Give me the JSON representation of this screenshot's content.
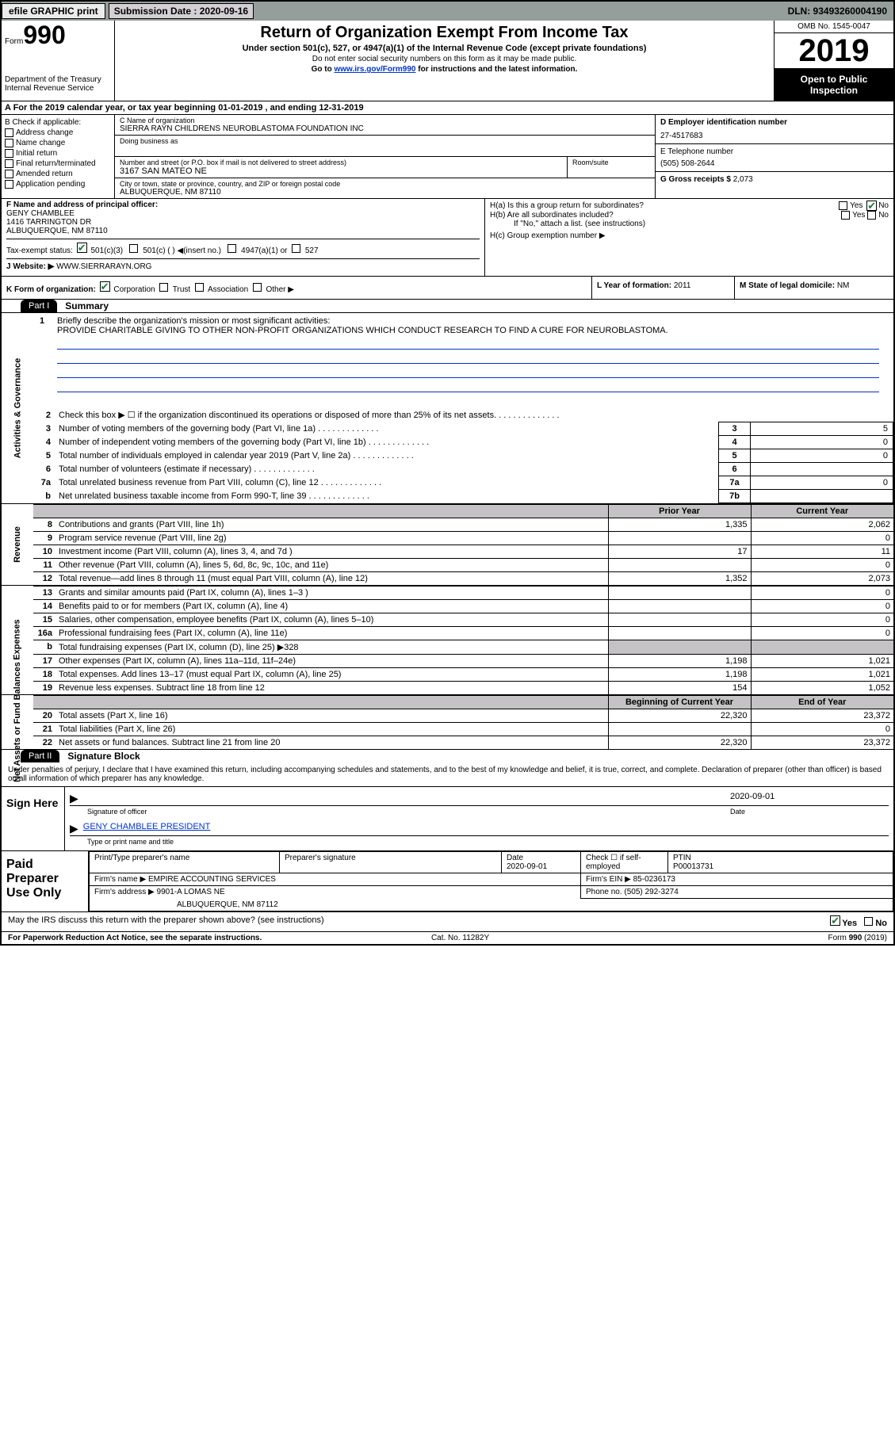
{
  "toolbar": {
    "efile": "efile GRAPHIC print",
    "sub_label": "Submission Date : ",
    "sub_date": "2020-09-16",
    "dln": "DLN: 93493260004190"
  },
  "header": {
    "form": "Form",
    "form_num": "990",
    "dept": "Department of the Treasury\nInternal Revenue Service",
    "title": "Return of Organization Exempt From Income Tax",
    "subtitle": "Under section 501(c), 527, or 4947(a)(1) of the Internal Revenue Code (except private foundations)",
    "note1": "Do not enter social security numbers on this form as it may be made public.",
    "note2_pre": "Go to ",
    "note2_link": "www.irs.gov/Form990",
    "note2_post": " for instructions and the latest information.",
    "omb": "OMB No. 1545-0047",
    "year": "2019",
    "inspect": "Open to Public Inspection"
  },
  "lineA": "A For the 2019 calendar year, or tax year beginning 01-01-2019   , and ending 12-31-2019",
  "boxB": {
    "label": "B Check if applicable:",
    "items": [
      "Address change",
      "Name change",
      "Initial return",
      "Final return/terminated",
      "Amended return",
      "Application pending"
    ]
  },
  "boxC": {
    "name_hdr": "C Name of organization",
    "name": "SIERRA RAYN CHILDRENS NEUROBLASTOMA FOUNDATION INC",
    "dba_hdr": "Doing business as",
    "addr_hdr": "Number and street (or P.O. box if mail is not delivered to street address)",
    "room_hdr": "Room/suite",
    "addr": "3167 SAN MATEO NE",
    "city_hdr": "City or town, state or province, country, and ZIP or foreign postal code",
    "city": "ALBUQUERQUE, NM  87110"
  },
  "boxD": {
    "hdr": "D Employer identification number",
    "val": "27-4517683"
  },
  "boxE": {
    "hdr": "E Telephone number",
    "val": "(505) 508-2644"
  },
  "boxG": {
    "hdr": "G Gross receipts $ ",
    "val": "2,073"
  },
  "boxF": {
    "hdr": "F Name and address of principal officer:",
    "name": "GENY CHAMBLEE",
    "addr1": "1416 TARRINGTON DR",
    "addr2": "ALBUQUERQUE, NM  87110"
  },
  "boxH": {
    "a": "H(a)  Is this a group return for subordinates?",
    "b": "H(b)  Are all subordinates included?",
    "b_note": "If \"No,\" attach a list. (see instructions)",
    "c": "H(c)  Group exemption number ▶",
    "yes": "Yes",
    "no": "No"
  },
  "boxI": {
    "label": "Tax-exempt status:",
    "opts": [
      "501(c)(3)",
      "501(c) (  ) ◀(insert no.)",
      "4947(a)(1) or",
      "527"
    ]
  },
  "boxJ": {
    "label": "J Website: ▶",
    "val": "WWW.SIERRARAYN.ORG"
  },
  "boxK": {
    "label": "K Form of organization:",
    "opts": [
      "Corporation",
      "Trust",
      "Association",
      "Other ▶"
    ]
  },
  "boxL": {
    "label": "L Year of formation: ",
    "val": "2011"
  },
  "boxM": {
    "label": "M State of legal domicile: ",
    "val": "NM"
  },
  "part1": {
    "tag": "Part I",
    "title": "Summary"
  },
  "mission": {
    "num": "1",
    "label": "Briefly describe the organization's mission or most significant activities:",
    "text": "PROVIDE CHARITABLE GIVING TO OTHER NON-PROFIT ORGANIZATIONS WHICH CONDUCT RESEARCH TO FIND A CURE FOR NEUROBLASTOMA."
  },
  "act_lines": [
    {
      "n": "2",
      "d": "Check this box ▶ ☐  if the organization discontinued its operations or disposed of more than 25% of its net assets.",
      "box": "",
      "v": ""
    },
    {
      "n": "3",
      "d": "Number of voting members of the governing body (Part VI, line 1a)",
      "box": "3",
      "v": "5"
    },
    {
      "n": "4",
      "d": "Number of independent voting members of the governing body (Part VI, line 1b)",
      "box": "4",
      "v": "0"
    },
    {
      "n": "5",
      "d": "Total number of individuals employed in calendar year 2019 (Part V, line 2a)",
      "box": "5",
      "v": "0"
    },
    {
      "n": "6",
      "d": "Total number of volunteers (estimate if necessary)",
      "box": "6",
      "v": ""
    },
    {
      "n": "7a",
      "d": "Total unrelated business revenue from Part VIII, column (C), line 12",
      "box": "7a",
      "v": "0"
    },
    {
      "n": "b",
      "d": "Net unrelated business taxable income from Form 990-T, line 39",
      "box": "7b",
      "v": ""
    }
  ],
  "rev_hdr": {
    "prior": "Prior Year",
    "curr": "Current Year"
  },
  "sec_labels": {
    "act": "Activities & Governance",
    "rev": "Revenue",
    "exp": "Expenses",
    "net": "Net Assets or Fund Balances"
  },
  "revenue": [
    {
      "n": "8",
      "d": "Contributions and grants (Part VIII, line 1h)",
      "p": "1,335",
      "c": "2,062"
    },
    {
      "n": "9",
      "d": "Program service revenue (Part VIII, line 2g)",
      "p": "",
      "c": "0"
    },
    {
      "n": "10",
      "d": "Investment income (Part VIII, column (A), lines 3, 4, and 7d )",
      "p": "17",
      "c": "11"
    },
    {
      "n": "11",
      "d": "Other revenue (Part VIII, column (A), lines 5, 6d, 8c, 9c, 10c, and 11e)",
      "p": "",
      "c": "0"
    },
    {
      "n": "12",
      "d": "Total revenue—add lines 8 through 11 (must equal Part VIII, column (A), line 12)",
      "p": "1,352",
      "c": "2,073"
    }
  ],
  "expenses": [
    {
      "n": "13",
      "d": "Grants and similar amounts paid (Part IX, column (A), lines 1–3 )",
      "p": "",
      "c": "0"
    },
    {
      "n": "14",
      "d": "Benefits paid to or for members (Part IX, column (A), line 4)",
      "p": "",
      "c": "0"
    },
    {
      "n": "15",
      "d": "Salaries, other compensation, employee benefits (Part IX, column (A), lines 5–10)",
      "p": "",
      "c": "0"
    },
    {
      "n": "16a",
      "d": "Professional fundraising fees (Part IX, column (A), line 11e)",
      "p": "",
      "c": "0"
    },
    {
      "n": "b",
      "d": "Total fundraising expenses (Part IX, column (D), line 25) ▶328",
      "p": "shade",
      "c": "shade"
    },
    {
      "n": "17",
      "d": "Other expenses (Part IX, column (A), lines 11a–11d, 11f–24e)",
      "p": "1,198",
      "c": "1,021"
    },
    {
      "n": "18",
      "d": "Total expenses. Add lines 13–17 (must equal Part IX, column (A), line 25)",
      "p": "1,198",
      "c": "1,021"
    },
    {
      "n": "19",
      "d": "Revenue less expenses. Subtract line 18 from line 12",
      "p": "154",
      "c": "1,052"
    }
  ],
  "net_hdr": {
    "prior": "Beginning of Current Year",
    "curr": "End of Year"
  },
  "net": [
    {
      "n": "20",
      "d": "Total assets (Part X, line 16)",
      "p": "22,320",
      "c": "23,372"
    },
    {
      "n": "21",
      "d": "Total liabilities (Part X, line 26)",
      "p": "",
      "c": "0"
    },
    {
      "n": "22",
      "d": "Net assets or fund balances. Subtract line 21 from line 20",
      "p": "22,320",
      "c": "23,372"
    }
  ],
  "part2": {
    "tag": "Part II",
    "title": "Signature Block"
  },
  "declare": "Under penalties of perjury, I declare that I have examined this return, including accompanying schedules and statements, and to the best of my knowledge and belief, it is true, correct, and complete. Declaration of preparer (other than officer) is based on all information of which preparer has any knowledge.",
  "sign": {
    "here": "Sign Here",
    "sig_lab": "Signature of officer",
    "date_lab": "Date",
    "date_val": "2020-09-01",
    "name": "GENY CHAMBLEE  PRESIDENT",
    "name_lab": "Type or print name and title"
  },
  "prep": {
    "title": "Paid Preparer Use Only",
    "h1": "Print/Type preparer's name",
    "h2": "Preparer's signature",
    "h3": "Date",
    "date": "2020-09-01",
    "h4": "Check ☐ if self-employed",
    "h5": "PTIN",
    "ptin": "P00013731",
    "firm_lab": "Firm's name    ▶",
    "firm": "EMPIRE ACCOUNTING SERVICES",
    "ein_lab": "Firm's EIN ▶",
    "ein": "85-0236173",
    "addr_lab": "Firm's address ▶",
    "addr1": "9901-A LOMAS NE",
    "addr2": "ALBUQUERQUE, NM  87112",
    "phone_lab": "Phone no.",
    "phone": "(505) 292-3274"
  },
  "discuss": {
    "q": "May the IRS discuss this return with the preparer shown above? (see instructions)",
    "yes": "Yes",
    "no": "No"
  },
  "footer": {
    "left": "For Paperwork Reduction Act Notice, see the separate instructions.",
    "mid": "Cat. No. 11282Y",
    "right": "Form 990 (2019)"
  }
}
